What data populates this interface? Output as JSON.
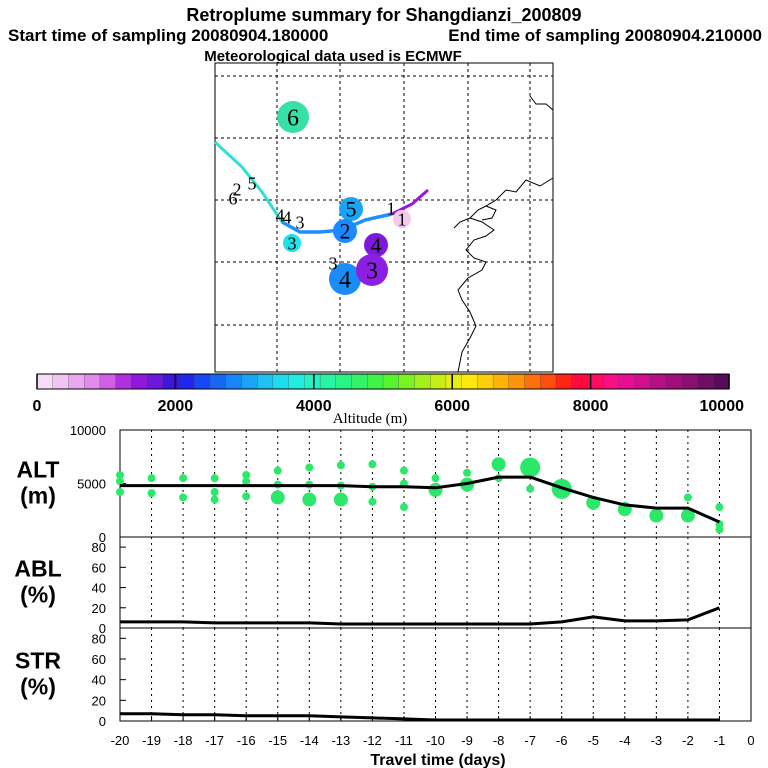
{
  "header": {
    "title": "Retroplume summary for Shangdianzi_200809",
    "start_time": "Start time of sampling 20080904.180000",
    "end_time": "End time of sampling 20080904.210000",
    "met_data": "Meteorological data used is ECMWF"
  },
  "chart_data": [
    {
      "type": "map",
      "title": "Retroplume trajectory map",
      "trajectory_color_main": "#1f8fff",
      "trajectory_color_west": "#2ee0d8",
      "trajectory_color_east": "#9a18e0",
      "clusters": [
        {
          "label": "6",
          "size": "large",
          "color": "#36e0a6"
        },
        {
          "label": "5",
          "size": "medium",
          "color": "#1aa4f6"
        },
        {
          "label": "2",
          "size": "medium",
          "color": "#1b89ff"
        },
        {
          "label": "3",
          "size": "small",
          "color": "#1fe3e8"
        },
        {
          "label": "4",
          "size": "large",
          "color": "#1a8cf5"
        },
        {
          "label": "4",
          "size": "medium",
          "color": "#7f18dd"
        },
        {
          "label": "3",
          "size": "large",
          "color": "#8b1fe3"
        },
        {
          "label": "1",
          "size": "small",
          "color": "#f5c8f0"
        },
        {
          "label": "4",
          "size": "small",
          "color": "#ffffff"
        },
        {
          "label": "6",
          "size": "small",
          "color": "#ffffff"
        },
        {
          "label": "2",
          "size": "small",
          "color": "#ffffff"
        },
        {
          "label": "5",
          "size": "small",
          "color": "#ffffff"
        },
        {
          "label": "4",
          "size": "small",
          "color": "#ffffff"
        },
        {
          "label": "3",
          "size": "small",
          "color": "#ffffff"
        },
        {
          "label": "3",
          "size": "small",
          "color": "#ffffff"
        },
        {
          "label": "1",
          "size": "small",
          "color": "#ffffff"
        }
      ]
    },
    {
      "type": "colorbar",
      "xlabel": "Altitude (m)",
      "range": [
        0,
        10000
      ],
      "tick_labels": [
        "0",
        "2000",
        "4000",
        "6000",
        "8000",
        "10000"
      ],
      "colors": [
        "#f7dcf7",
        "#efc5f2",
        "#e7aaee",
        "#df8cea",
        "#cf5fe4",
        "#b12fdc",
        "#8f18dc",
        "#6f16dc",
        "#3c16dc",
        "#1f26ee",
        "#1648f5",
        "#1767f7",
        "#1886f8",
        "#1aa4f6",
        "#1dc1f2",
        "#1fdcec",
        "#21ece0",
        "#27f0c4",
        "#2bf3a6",
        "#2bf487",
        "#33f466",
        "#3ef447",
        "#55f42e",
        "#7bf224",
        "#a1f01e",
        "#c4ee16",
        "#e6ed10",
        "#ffe70b",
        "#ffce0a",
        "#ffb20a",
        "#ff930b",
        "#ff700c",
        "#ff4d0e",
        "#ff2414",
        "#ff0a3a",
        "#ff0c62",
        "#f80f86",
        "#e80e93",
        "#d20d8e",
        "#b90f84",
        "#a1107a",
        "#871070",
        "#6e0e64",
        "#560c58"
      ]
    },
    {
      "type": "line",
      "panel": "ALT",
      "ylabel": [
        "ALT",
        "(m)"
      ],
      "ylim": [
        0,
        10000
      ],
      "yticks": [
        "0",
        "5000",
        "10000"
      ],
      "series": [
        {
          "name": "mean altitude",
          "x": [
            -20,
            -19,
            -18,
            -17,
            -16,
            -15,
            -14,
            -13,
            -12,
            -11,
            -10,
            -9,
            -8,
            -7,
            -6,
            -5,
            -4,
            -3,
            -2,
            -1
          ],
          "values": [
            4800,
            4800,
            4800,
            4800,
            4800,
            4800,
            4800,
            4800,
            4700,
            4700,
            4600,
            5000,
            5600,
            5600,
            4600,
            3700,
            3000,
            2700,
            2700,
            1400
          ]
        }
      ],
      "scatter_color": "#2ce86a",
      "scatter": [
        {
          "x": -20,
          "y": 5800,
          "size": "small"
        },
        {
          "x": -20,
          "y": 5200,
          "size": "small"
        },
        {
          "x": -20,
          "y": 4200,
          "size": "small"
        },
        {
          "x": -19,
          "y": 5500,
          "size": "small"
        },
        {
          "x": -19,
          "y": 4100,
          "size": "small"
        },
        {
          "x": -18,
          "y": 5500,
          "size": "small"
        },
        {
          "x": -18,
          "y": 3700,
          "size": "small"
        },
        {
          "x": -17,
          "y": 5500,
          "size": "small"
        },
        {
          "x": -17,
          "y": 4200,
          "size": "small"
        },
        {
          "x": -17,
          "y": 3500,
          "size": "small"
        },
        {
          "x": -16,
          "y": 5800,
          "size": "small"
        },
        {
          "x": -16,
          "y": 5200,
          "size": "small"
        },
        {
          "x": -16,
          "y": 3800,
          "size": "small"
        },
        {
          "x": -15,
          "y": 6200,
          "size": "small"
        },
        {
          "x": -15,
          "y": 4900,
          "size": "small"
        },
        {
          "x": -15,
          "y": 3700,
          "size": "medium"
        },
        {
          "x": -14,
          "y": 6500,
          "size": "small"
        },
        {
          "x": -14,
          "y": 4900,
          "size": "small"
        },
        {
          "x": -14,
          "y": 3500,
          "size": "medium"
        },
        {
          "x": -13,
          "y": 6700,
          "size": "small"
        },
        {
          "x": -13,
          "y": 4800,
          "size": "small"
        },
        {
          "x": -13,
          "y": 3500,
          "size": "medium"
        },
        {
          "x": -12,
          "y": 6800,
          "size": "small"
        },
        {
          "x": -12,
          "y": 4700,
          "size": "small"
        },
        {
          "x": -12,
          "y": 3300,
          "size": "small"
        },
        {
          "x": -11,
          "y": 6200,
          "size": "small"
        },
        {
          "x": -11,
          "y": 5000,
          "size": "small"
        },
        {
          "x": -11,
          "y": 2800,
          "size": "small"
        },
        {
          "x": -10,
          "y": 5500,
          "size": "small"
        },
        {
          "x": -10,
          "y": 4400,
          "size": "medium"
        },
        {
          "x": -9,
          "y": 6000,
          "size": "small"
        },
        {
          "x": -9,
          "y": 4900,
          "size": "medium"
        },
        {
          "x": -8,
          "y": 6800,
          "size": "medium"
        },
        {
          "x": -8,
          "y": 5500,
          "size": "small"
        },
        {
          "x": -7,
          "y": 6500,
          "size": "large"
        },
        {
          "x": -7,
          "y": 4500,
          "size": "small"
        },
        {
          "x": -6,
          "y": 4500,
          "size": "large"
        },
        {
          "x": -5,
          "y": 3200,
          "size": "medium"
        },
        {
          "x": -4,
          "y": 2600,
          "size": "medium"
        },
        {
          "x": -3,
          "y": 2000,
          "size": "medium"
        },
        {
          "x": -2,
          "y": 3700,
          "size": "small"
        },
        {
          "x": -2,
          "y": 2000,
          "size": "medium"
        },
        {
          "x": -1,
          "y": 2800,
          "size": "small"
        },
        {
          "x": -1,
          "y": 1200,
          "size": "small"
        },
        {
          "x": -1,
          "y": 700,
          "size": "small"
        }
      ]
    },
    {
      "type": "line",
      "panel": "ABL",
      "ylabel": [
        "ABL",
        "(%)"
      ],
      "ylim": [
        0,
        90
      ],
      "yticks": [
        "0",
        "20",
        "40",
        "60",
        "80"
      ],
      "series": [
        {
          "name": "ABL fraction",
          "x": [
            -20,
            -19,
            -18,
            -17,
            -16,
            -15,
            -14,
            -13,
            -12,
            -11,
            -10,
            -9,
            -8,
            -7,
            -6,
            -5,
            -4,
            -3,
            -2,
            -1
          ],
          "values": [
            6,
            6,
            6,
            5,
            5,
            5,
            5,
            4,
            4,
            4,
            4,
            4,
            4,
            4,
            6,
            11,
            7,
            7,
            8,
            20
          ]
        }
      ]
    },
    {
      "type": "line",
      "panel": "STR",
      "ylabel": [
        "STR",
        "(%)"
      ],
      "ylim": [
        0,
        90
      ],
      "yticks": [
        "0",
        "20",
        "40",
        "60",
        "80"
      ],
      "xlabel": "Travel time (days)",
      "xticks": [
        "-20",
        "-19",
        "-18",
        "-17",
        "-16",
        "-15",
        "-14",
        "-13",
        "-12",
        "-11",
        "-10",
        "-9",
        "-8",
        "-7",
        "-6",
        "-5",
        "-4",
        "-3",
        "-2",
        "-1",
        "0"
      ],
      "series": [
        {
          "name": "STR fraction",
          "x": [
            -20,
            -19,
            -18,
            -17,
            -16,
            -15,
            -14,
            -13,
            -12,
            -11,
            -10,
            -9,
            -8,
            -7,
            -6,
            -5,
            -4,
            -3,
            -2,
            -1
          ],
          "values": [
            7,
            7,
            6,
            6,
            5,
            5,
            5,
            4,
            3,
            2,
            1,
            1,
            1,
            1,
            1,
            1,
            1,
            1,
            1,
            1
          ]
        }
      ]
    }
  ]
}
